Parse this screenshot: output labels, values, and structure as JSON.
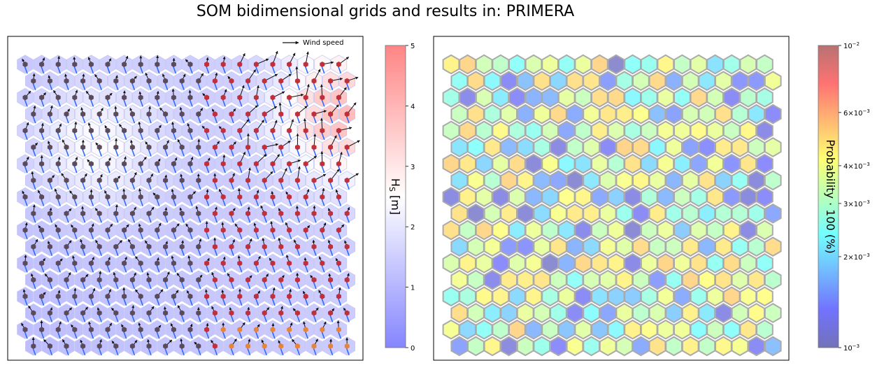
{
  "title": "SOM bidimensional grids and results in: PRIMERA",
  "legend": {
    "label": "Wind speed",
    "placement": "top-right"
  },
  "colorbar_left": {
    "label": "H_S [m]",
    "label_main": "H",
    "label_sub": "S",
    "label_unit": " [m]",
    "ticks": [
      "0",
      "1",
      "2",
      "3",
      "4",
      "5"
    ],
    "range": [
      0,
      5
    ],
    "cmap": "bwr"
  },
  "colorbar_right": {
    "label": "Probability · 100 (%)",
    "ticks": [
      {
        "value": 0.001,
        "base": "10",
        "exp": "−3",
        "mant": ""
      },
      {
        "value": 0.002,
        "base": "10",
        "exp": "−3",
        "mant": "2×"
      },
      {
        "value": 0.003,
        "base": "10",
        "exp": "−3",
        "mant": "3×"
      },
      {
        "value": 0.004,
        "base": "10",
        "exp": "−3",
        "mant": "4×"
      },
      {
        "value": 0.006,
        "base": "10",
        "exp": "−3",
        "mant": "6×"
      },
      {
        "value": 0.01,
        "base": "10",
        "exp": "−2",
        "mant": ""
      }
    ],
    "range": [
      0.001,
      0.01
    ],
    "scale": "log",
    "cmap": "jet"
  },
  "chart_data": [
    {
      "type": "heatmap",
      "panel": "left",
      "description_of_grid": "hexagonal SOM grid 20 columns x 18 rows, colored by H_S; each cell has a wind-speed arrow",
      "grid": {
        "cols": 20,
        "rows": 18
      },
      "hs_peaks": [
        {
          "col": 19,
          "row": 3,
          "hs": 3.8
        },
        {
          "col": 4,
          "row": 5,
          "hs": 2.4
        }
      ],
      "hs_baseline": 0.9
    },
    {
      "type": "heatmap",
      "panel": "right",
      "description_of_grid": "hexagonal SOM grid 20 columns x 18 rows, colored by probability (log scale)",
      "grid": {
        "cols": 20,
        "rows": 18
      },
      "prob_range": [
        0.001,
        0.007
      ]
    }
  ]
}
